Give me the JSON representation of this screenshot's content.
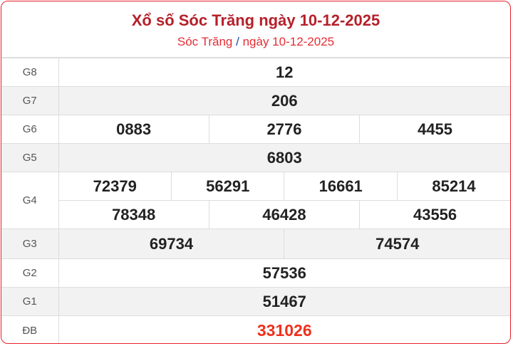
{
  "header": {
    "title": "Xổ số Sóc Trăng ngày 10-12-2025",
    "breadcrumb_province": "Sóc Trăng",
    "breadcrumb_sep": "/",
    "breadcrumb_date": "ngày 10-12-2025"
  },
  "prizes": {
    "g8": {
      "label": "G8",
      "numbers": [
        "12"
      ]
    },
    "g7": {
      "label": "G7",
      "numbers": [
        "206"
      ]
    },
    "g6": {
      "label": "G6",
      "numbers": [
        "0883",
        "2776",
        "4455"
      ]
    },
    "g5": {
      "label": "G5",
      "numbers": [
        "6803"
      ]
    },
    "g4": {
      "label": "G4",
      "numbers": [
        "72379",
        "56291",
        "16661",
        "85214",
        "78348",
        "46428",
        "43556"
      ]
    },
    "g3": {
      "label": "G3",
      "numbers": [
        "69734",
        "74574"
      ]
    },
    "g2": {
      "label": "G2",
      "numbers": [
        "57536"
      ]
    },
    "g1": {
      "label": "G1",
      "numbers": [
        "51467"
      ]
    },
    "db": {
      "label": "ĐB",
      "numbers": [
        "331026"
      ]
    }
  },
  "colors": {
    "accent": "#b5202a",
    "special": "#f0301c",
    "border": "#e8202a"
  }
}
